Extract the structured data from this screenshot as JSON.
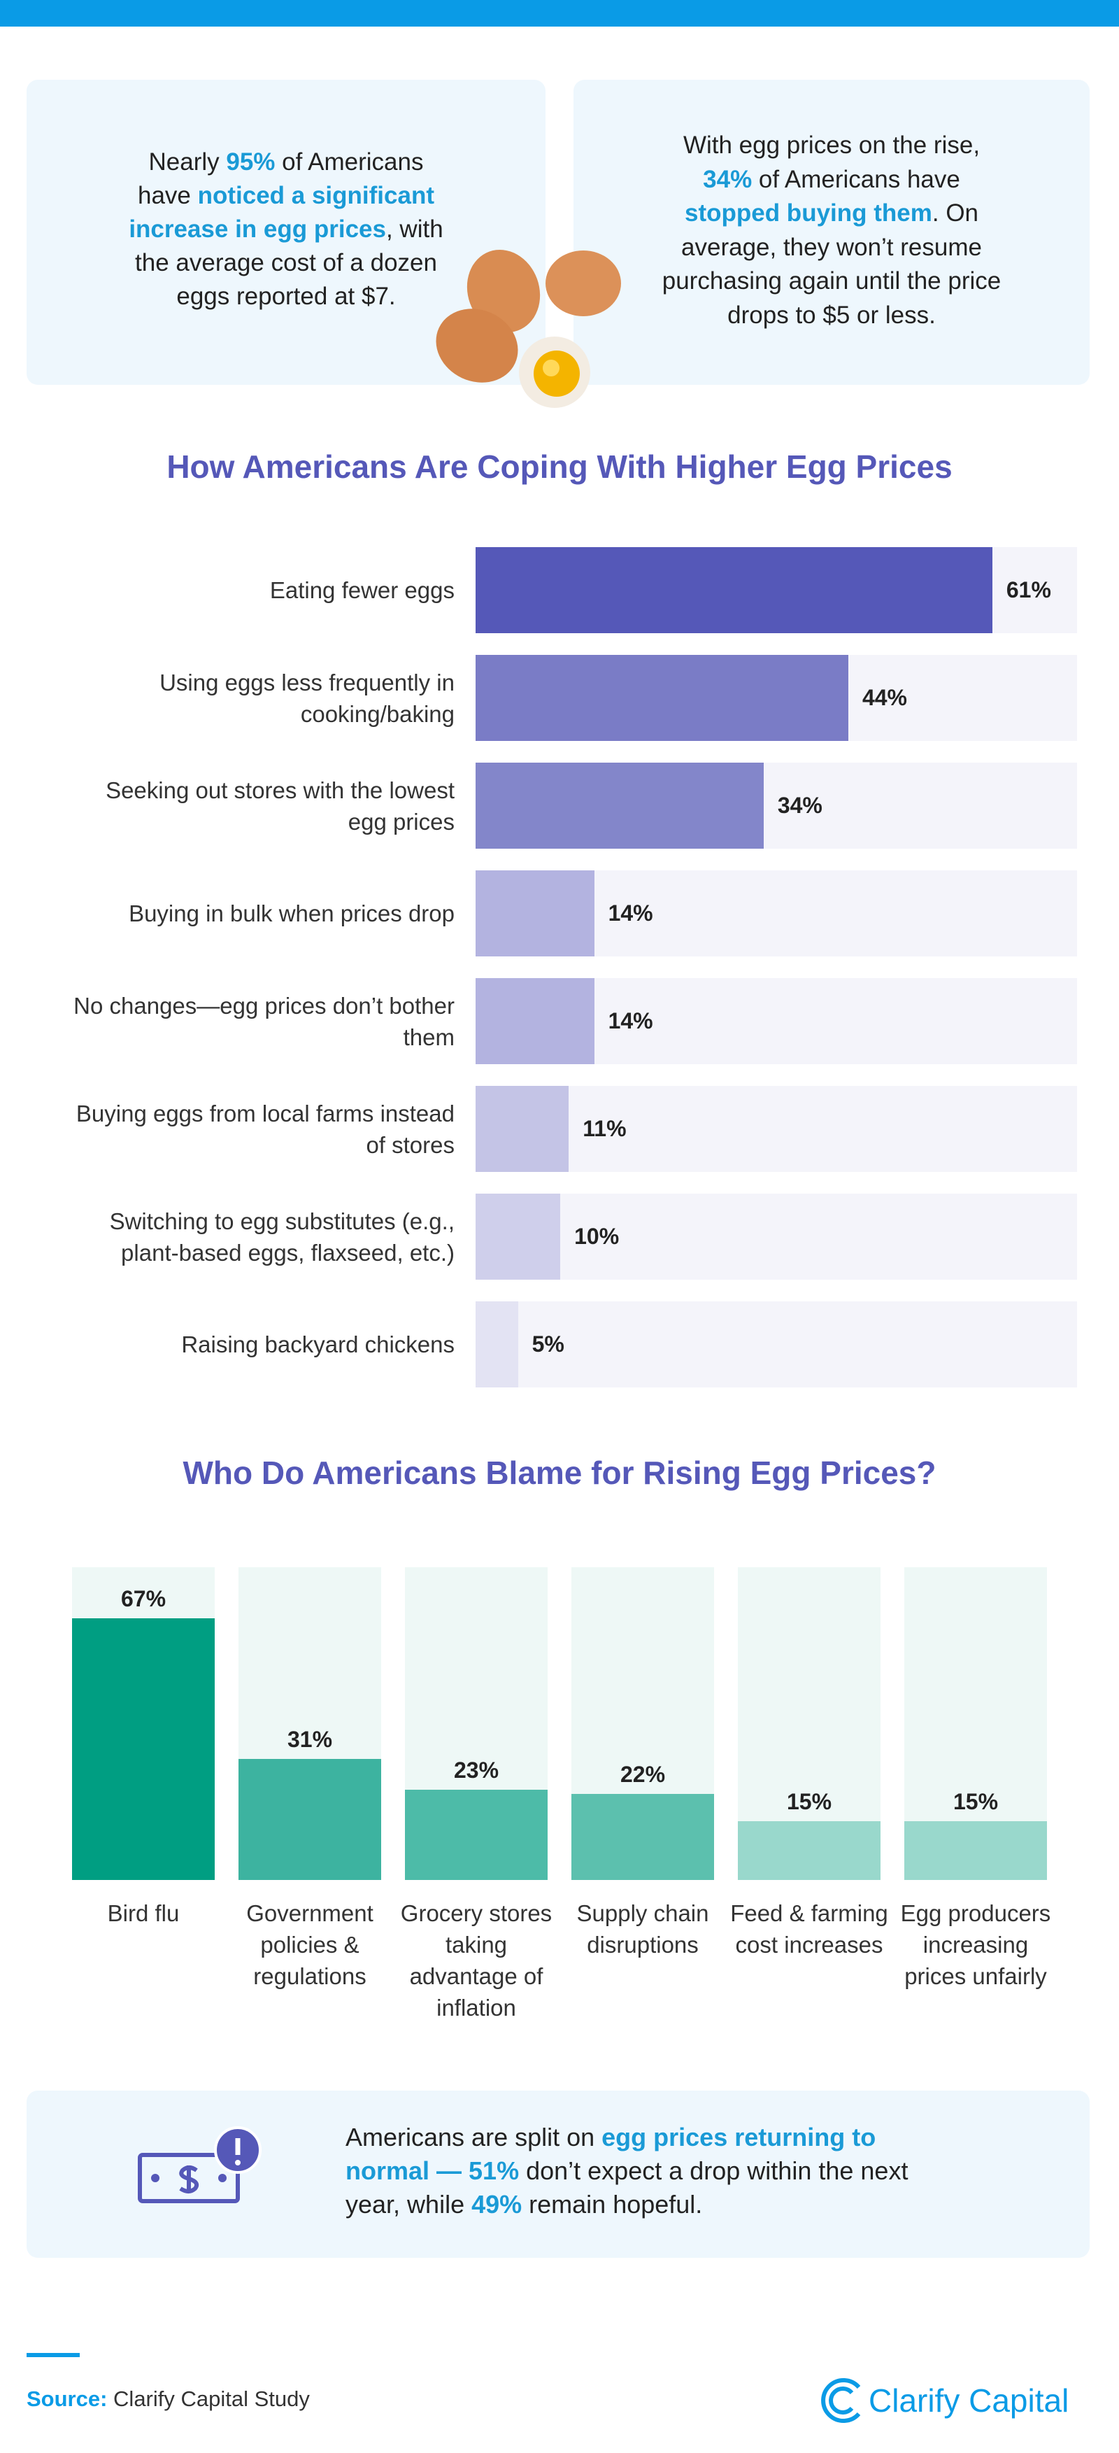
{
  "callouts": {
    "left": {
      "lines": [
        [
          {
            "text": "Nearly ",
            "highlight": false
          },
          {
            "text": "95%",
            "highlight": true
          },
          {
            "text": " of Americans",
            "highlight": false
          }
        ],
        [
          {
            "text": "have ",
            "highlight": false
          },
          {
            "text": "noticed a significant",
            "highlight": true
          }
        ],
        [
          {
            "text": "increase in egg prices",
            "highlight": true
          },
          {
            "text": ", with",
            "highlight": false
          }
        ],
        [
          {
            "text": "the average cost of a dozen",
            "highlight": false
          }
        ],
        [
          {
            "text": "eggs reported at $7.",
            "highlight": false
          }
        ]
      ]
    },
    "right": {
      "lines": [
        [
          {
            "text": "With egg prices on the rise,",
            "highlight": false
          }
        ],
        [
          {
            "text": "34%",
            "highlight": true
          },
          {
            "text": " of Americans have",
            "highlight": false
          }
        ],
        [
          {
            "text": "stopped buying them",
            "highlight": true
          },
          {
            "text": ". On",
            "highlight": false
          }
        ],
        [
          {
            "text": "average, they won’t resume",
            "highlight": false
          }
        ],
        [
          {
            "text": "purchasing again until the price",
            "highlight": false
          }
        ],
        [
          {
            "text": "drops to $5 or less.",
            "highlight": false
          }
        ]
      ]
    },
    "bottom": {
      "lines": [
        [
          {
            "text": "Americans are split on ",
            "highlight": false
          },
          {
            "text": "egg prices returning to",
            "highlight": true
          }
        ],
        [
          {
            "text": "normal — 51%",
            "highlight": true
          },
          {
            "text": " don’t expect a drop within the next",
            "highlight": false
          }
        ],
        [
          {
            "text": "year, while ",
            "highlight": false
          },
          {
            "text": "49%",
            "highlight": true
          },
          {
            "text": " remain hopeful.",
            "highlight": false
          }
        ]
      ]
    }
  },
  "chart_data": [
    {
      "type": "barh",
      "title": "How Americans Are Coping With Higher Egg Prices",
      "categories": [
        "Eating fewer eggs",
        "Using eggs less frequently in cooking/baking",
        "Seeking out stores with the lowest egg prices",
        "Buying in bulk when prices drop",
        "No changes—egg prices don’t bother them",
        "Buying eggs from local farms instead of stores",
        "Switching to egg substitutes (e.g., plant-based eggs, flaxseed, etc.)",
        "Raising backyard chickens"
      ],
      "values": [
        61,
        44,
        34,
        14,
        14,
        11,
        10,
        5
      ],
      "value_labels": [
        "61%",
        "44%",
        "34%",
        "14%",
        "14%",
        "11%",
        "10%",
        "5%"
      ],
      "colors": [
        "#5558b8",
        "#7a7cc6",
        "#8386ca",
        "#b3b3e0",
        "#b3b3e0",
        "#c4c4e6",
        "#cfcfeb",
        "#e3e3f3"
      ],
      "track_color": "#f4f4fa",
      "xlim": [
        0,
        71
      ]
    },
    {
      "type": "bar",
      "title": "Who Do Americans Blame for Rising Egg Prices?",
      "categories": [
        "Bird flu",
        "Government policies & regulations",
        "Grocery stores taking advantage of inflation",
        "Supply chain disruptions",
        "Feed & farming cost increases",
        "Egg producers increasing prices unfairly"
      ],
      "values": [
        67,
        31,
        23,
        22,
        15,
        15
      ],
      "value_labels": [
        "67%",
        "31%",
        "23%",
        "22%",
        "15%",
        "15%"
      ],
      "colors": [
        "#009e82",
        "#3db3a0",
        "#4dbba8",
        "#5cc0ae",
        "#99d8cc",
        "#99d8cc"
      ],
      "track_color": "#eef8f6",
      "ylim": [
        0,
        80
      ]
    }
  ],
  "footer": {
    "source_label": "Source:",
    "source_text": "Clarify Capital Study",
    "logo": "Clarify Capital"
  }
}
